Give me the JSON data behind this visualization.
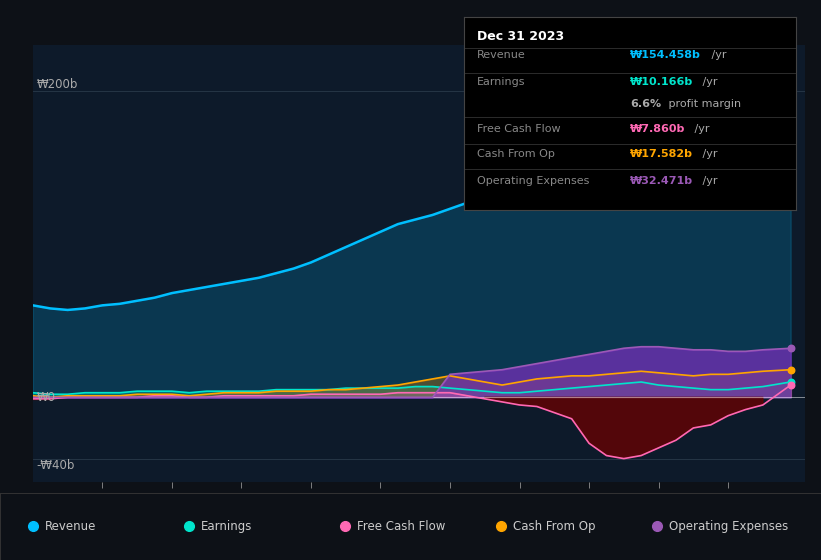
{
  "background_color": "#0d1117",
  "plot_bg_color": "#0d1a2a",
  "ylabel_200": "₩200b",
  "ylabel_0": "₩0",
  "ylabel_neg40": "-₩40b",
  "ylim": [
    -55,
    230
  ],
  "legend": [
    {
      "label": "Revenue",
      "color": "#00bfff"
    },
    {
      "label": "Earnings",
      "color": "#00e5cc"
    },
    {
      "label": "Free Cash Flow",
      "color": "#ff69b4"
    },
    {
      "label": "Cash From Op",
      "color": "#ffa500"
    },
    {
      "label": "Operating Expenses",
      "color": "#9b59b6"
    }
  ],
  "series": {
    "years": [
      2013.0,
      2013.25,
      2013.5,
      2013.75,
      2014.0,
      2014.25,
      2014.5,
      2014.75,
      2015.0,
      2015.25,
      2015.5,
      2015.75,
      2016.0,
      2016.25,
      2016.5,
      2016.75,
      2017.0,
      2017.25,
      2017.5,
      2017.75,
      2018.0,
      2018.25,
      2018.5,
      2018.75,
      2019.0,
      2019.25,
      2019.5,
      2019.75,
      2020.0,
      2020.25,
      2020.5,
      2020.75,
      2021.0,
      2021.25,
      2021.5,
      2021.75,
      2022.0,
      2022.25,
      2022.5,
      2022.75,
      2023.0,
      2023.25,
      2023.5,
      2023.9
    ],
    "revenue": [
      60,
      58,
      57,
      58,
      60,
      61,
      63,
      65,
      68,
      70,
      72,
      74,
      76,
      78,
      81,
      84,
      88,
      93,
      98,
      103,
      108,
      113,
      116,
      119,
      123,
      127,
      130,
      133,
      152,
      162,
      155,
      148,
      165,
      172,
      176,
      183,
      190,
      197,
      195,
      203,
      208,
      212,
      180,
      154
    ],
    "earnings": [
      3,
      2,
      2,
      3,
      3,
      3,
      4,
      4,
      4,
      3,
      4,
      4,
      4,
      4,
      5,
      5,
      5,
      5,
      6,
      6,
      6,
      6,
      7,
      7,
      6,
      5,
      4,
      3,
      3,
      4,
      5,
      6,
      7,
      8,
      9,
      10,
      8,
      7,
      6,
      5,
      5,
      6,
      7,
      10
    ],
    "free_cash_flow": [
      -1,
      -1,
      0,
      0,
      0,
      0,
      0,
      1,
      1,
      0,
      0,
      1,
      1,
      1,
      1,
      1,
      2,
      2,
      2,
      2,
      2,
      3,
      3,
      3,
      3,
      1,
      -1,
      -3,
      -5,
      -6,
      -10,
      -14,
      -30,
      -38,
      -40,
      -38,
      -33,
      -28,
      -20,
      -18,
      -12,
      -8,
      -5,
      8
    ],
    "cash_from_op": [
      1,
      0,
      1,
      1,
      1,
      1,
      2,
      2,
      2,
      1,
      2,
      3,
      3,
      3,
      4,
      4,
      4,
      5,
      5,
      6,
      7,
      8,
      10,
      12,
      14,
      12,
      10,
      8,
      10,
      12,
      13,
      14,
      14,
      15,
      16,
      17,
      16,
      15,
      14,
      15,
      15,
      16,
      17,
      18
    ],
    "operating_expenses": [
      0,
      0,
      0,
      0,
      0,
      0,
      0,
      0,
      0,
      0,
      0,
      0,
      0,
      0,
      0,
      0,
      0,
      0,
      0,
      0,
      0,
      0,
      0,
      0,
      15,
      16,
      17,
      18,
      20,
      22,
      24,
      26,
      28,
      30,
      32,
      33,
      33,
      32,
      31,
      31,
      30,
      30,
      31,
      32
    ]
  },
  "tooltip": {
    "title": "Dec 31 2023",
    "rows": [
      {
        "label": "Revenue",
        "value": "₩154.458b",
        "suffix": " /yr",
        "color": "#00bfff"
      },
      {
        "label": "Earnings",
        "value": "₩10.166b",
        "suffix": " /yr",
        "color": "#00e5cc"
      },
      {
        "label": "",
        "value": "6.6%",
        "suffix": " profit margin",
        "color": "#aaaaaa"
      },
      {
        "label": "Free Cash Flow",
        "value": "₩7.860b",
        "suffix": " /yr",
        "color": "#ff69b4"
      },
      {
        "label": "Cash From Op",
        "value": "₩17.582b",
        "suffix": " /yr",
        "color": "#ffa500"
      },
      {
        "label": "Operating Expenses",
        "value": "₩32.471b",
        "suffix": " /yr",
        "color": "#9b59b6"
      }
    ]
  }
}
